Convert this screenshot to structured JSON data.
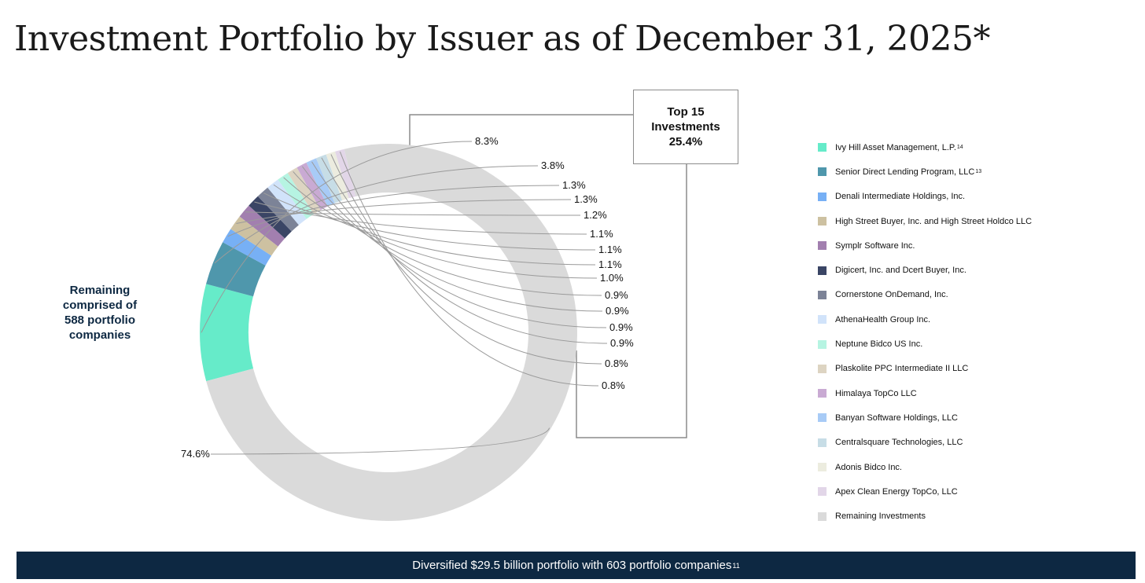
{
  "title": "Investment Portfolio by Issuer as of December 31, 2025*",
  "remaining_note": [
    "Remaining",
    "comprised of",
    "588 portfolio",
    "companies"
  ],
  "top15_box": [
    "Top 15",
    "Investments",
    "25.4%"
  ],
  "chart_data": {
    "type": "pie",
    "subtype": "donut",
    "title": "Investment Portfolio by Issuer as of December 31, 2025*",
    "series": [
      {
        "name": "Ivy Hill Asset Management, L.P.",
        "sup": "14",
        "value": 8.3,
        "label": "8.3%",
        "color": "#66ebc9"
      },
      {
        "name": "Senior Direct Lending Program, LLC",
        "sup": "13",
        "value": 3.8,
        "label": "3.8%",
        "color": "#4f97ac"
      },
      {
        "name": "Denali Intermediate Holdings, Inc.",
        "sup": "",
        "value": 1.3,
        "label": "1.3%",
        "color": "#77b0f5"
      },
      {
        "name": "High Street Buyer, Inc. and High Street Holdco LLC",
        "sup": "",
        "value": 1.3,
        "label": "1.3%",
        "color": "#cdc1a1"
      },
      {
        "name": "Symplr Software Inc.",
        "sup": "",
        "value": 1.2,
        "label": "1.2%",
        "color": "#a27faf"
      },
      {
        "name": "Digicert, Inc. and Dcert Buyer, Inc.",
        "sup": "",
        "value": 1.1,
        "label": "1.1%",
        "color": "#3a4565"
      },
      {
        "name": "Cornerstone OnDemand, Inc.",
        "sup": "",
        "value": 1.1,
        "label": "1.1%",
        "color": "#7c8397"
      },
      {
        "name": "AthenaHealth Group Inc.",
        "sup": "",
        "value": 1.1,
        "label": "1.1%",
        "color": "#d1e3fa"
      },
      {
        "name": "Neptune Bidco US Inc.",
        "sup": "",
        "value": 1.0,
        "label": "1.0%",
        "color": "#b6f4e2"
      },
      {
        "name": "Plaskolite PPC Intermediate II LLC",
        "sup": "",
        "value": 0.9,
        "label": "0.9%",
        "color": "#ddd4c2"
      },
      {
        "name": "Himalaya TopCo LLC",
        "sup": "",
        "value": 0.9,
        "label": "0.9%",
        "color": "#c9aad3"
      },
      {
        "name": "Banyan Software Holdings, LLC",
        "sup": "",
        "value": 0.9,
        "label": "0.9%",
        "color": "#a8cbf6"
      },
      {
        "name": "Centralsquare Technologies, LLC",
        "sup": "",
        "value": 0.9,
        "label": "0.9%",
        "color": "#c7dde6"
      },
      {
        "name": "Adonis Bidco Inc.",
        "sup": "",
        "value": 0.8,
        "label": "0.8%",
        "color": "#ececdf"
      },
      {
        "name": "Apex Clean Energy TopCo, LLC",
        "sup": "",
        "value": 0.8,
        "label": "0.8%",
        "color": "#e2d6e8"
      },
      {
        "name": "Remaining Investments",
        "sup": "",
        "value": 74.6,
        "label": "74.6%",
        "color": "#dadada"
      }
    ]
  },
  "footer": {
    "text": "Diversified $29.5 billion portfolio with 603 portfolio companies",
    "sup": "11"
  }
}
